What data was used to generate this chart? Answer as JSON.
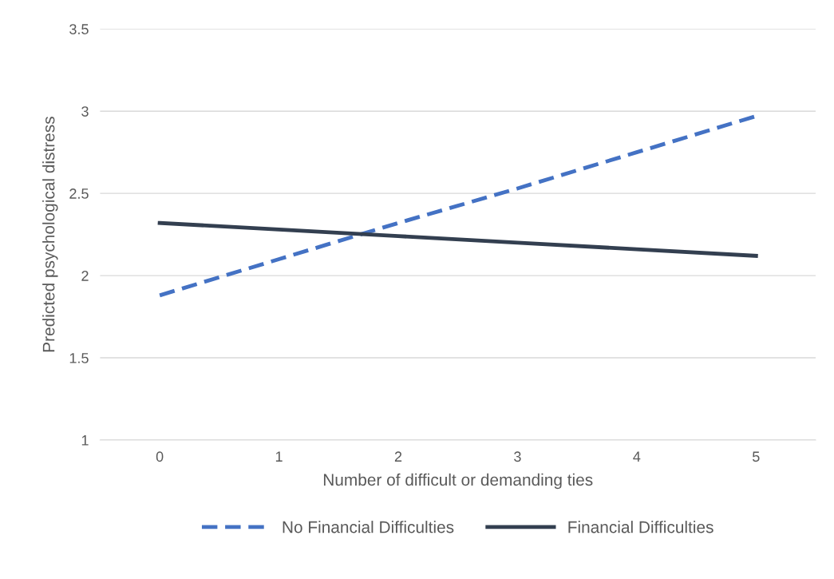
{
  "chart_data": {
    "type": "line",
    "xlabel": "Number of difficult or demanding ties",
    "ylabel": "Predicted psychological distress",
    "categories": [
      "0",
      "1",
      "2",
      "3",
      "4",
      "5"
    ],
    "series": [
      {
        "name": "No Financial Difficulties",
        "color": "#4472c4",
        "line_style": "dashed",
        "values": [
          1.88,
          2.1,
          2.32,
          2.53,
          2.75,
          2.97
        ]
      },
      {
        "name": "Financial Difficulties",
        "color": "#333f50",
        "line_style": "solid",
        "values": [
          2.32,
          2.28,
          2.24,
          2.2,
          2.16,
          2.12
        ]
      }
    ],
    "ylim": [
      1,
      3.5
    ],
    "yticks": [
      1,
      1.5,
      2,
      2.5,
      3,
      3.5
    ],
    "grid": "y",
    "legend": "bottom",
    "marker": "none"
  }
}
